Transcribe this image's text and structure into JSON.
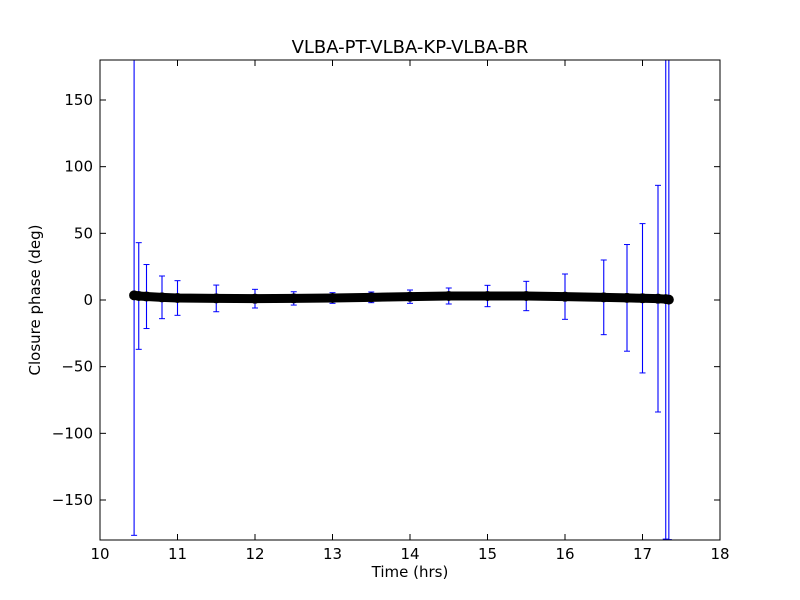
{
  "chart_data": {
    "type": "scatter",
    "title": "VLBA-PT-VLBA-KP-VLBA-BR",
    "xlabel": "Time (hrs)",
    "ylabel": "Closure phase (deg)",
    "xlim": [
      10,
      18
    ],
    "ylim": [
      -180,
      180
    ],
    "xticks": [
      10,
      11,
      12,
      13,
      14,
      15,
      16,
      17,
      18
    ],
    "yticks": [
      -150,
      -100,
      -50,
      0,
      50,
      100,
      150
    ],
    "xtick_labels": [
      "10",
      "11",
      "12",
      "13",
      "14",
      "15",
      "16",
      "17",
      "18"
    ],
    "ytick_labels": [
      "−150",
      "−100",
      "−50",
      "0",
      "50",
      "100",
      "150"
    ],
    "grid": false,
    "series": [
      {
        "marker_color": "#000000",
        "errorbar_color": "#0000ff",
        "x": [
          10.44,
          10.5,
          10.6,
          10.8,
          11.0,
          11.5,
          12.0,
          12.5,
          13.0,
          13.5,
          14.0,
          14.5,
          15.0,
          15.5,
          16.0,
          16.5,
          16.8,
          17.0,
          17.2,
          17.3,
          17.34
        ],
        "y": [
          3.5,
          3.0,
          2.6,
          2.0,
          1.5,
          1.2,
          1.0,
          1.2,
          1.5,
          2.0,
          2.5,
          3.0,
          3.0,
          3.0,
          2.5,
          2.0,
          1.6,
          1.3,
          1.0,
          0.7,
          0.3
        ],
        "yerr": [
          180,
          40,
          24,
          16,
          13,
          10,
          7,
          5,
          4,
          4,
          5,
          6,
          8,
          11,
          17,
          28,
          40,
          56,
          85,
          180,
          180
        ]
      }
    ]
  }
}
